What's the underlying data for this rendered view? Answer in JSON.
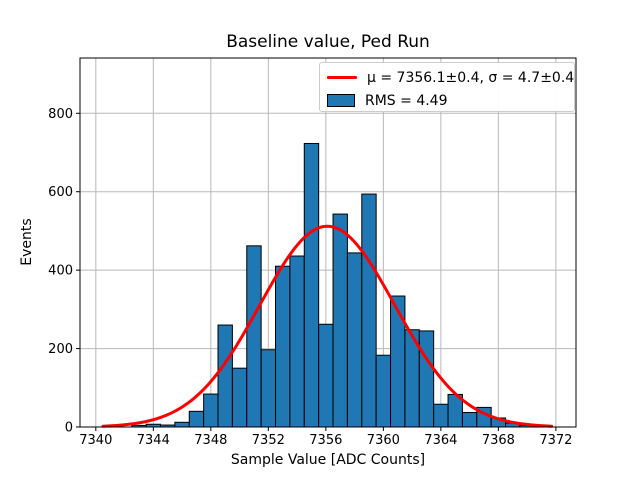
{
  "figure": {
    "title": "Baseline value, Ped Run",
    "xlabel": "Sample Value [ADC Counts]",
    "ylabel": "Events",
    "legend_items": [
      {
        "label": "μ = 7356.1±0.4, σ = 4.7±0.4",
        "swatch": "line",
        "color": "#ff0000"
      },
      {
        "label": "RMS = 4.49",
        "swatch": "patch",
        "color": "#1f77b4"
      }
    ]
  },
  "chart_data": {
    "type": "bar",
    "subtype": "histogram-with-gaussian-fit",
    "title": "Baseline value, Ped Run",
    "xlabel": "Sample Value [ADC Counts]",
    "ylabel": "Events",
    "grid": true,
    "legend_position": "upper right",
    "xlim": [
      7338.9,
      7373.4
    ],
    "ylim": [
      0,
      941
    ],
    "xticks": [
      7340,
      7344,
      7348,
      7352,
      7356,
      7360,
      7364,
      7368,
      7372
    ],
    "yticks": [
      0,
      200,
      400,
      600,
      800
    ],
    "bin_width": 1,
    "bin_centers": [
      7343,
      7344,
      7345,
      7346,
      7347,
      7348,
      7349,
      7350,
      7351,
      7352,
      7353,
      7354,
      7355,
      7356,
      7357,
      7358,
      7359,
      7360,
      7361,
      7362,
      7363,
      7364,
      7365,
      7366,
      7367,
      7368,
      7369,
      7370,
      7371
    ],
    "counts": [
      4,
      7,
      5,
      12,
      40,
      84,
      260,
      150,
      462,
      197,
      410,
      436,
      723,
      262,
      543,
      444,
      594,
      183,
      334,
      248,
      245,
      58,
      83,
      37,
      50,
      23,
      10,
      4,
      3
    ],
    "gaussian_fit": {
      "mu": 7356.1,
      "mu_err": 0.4,
      "sigma": 4.7,
      "sigma_err": 0.4,
      "amplitude": 512,
      "rms": 4.49,
      "x_start": 7340.5,
      "x_end": 7371.7
    },
    "colors": {
      "bar_fill": "#1f77b4",
      "bar_edge": "#000000",
      "curve": "#ff0000",
      "grid": "#b8b8b8",
      "spine": "#000000"
    }
  }
}
